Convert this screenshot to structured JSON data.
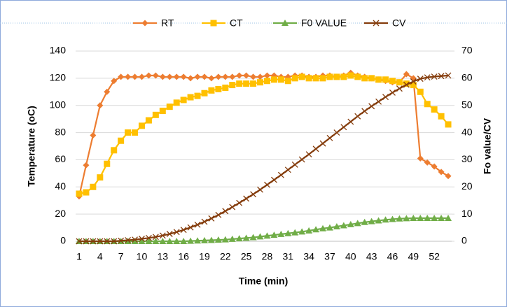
{
  "chart_data": {
    "type": "line",
    "xlabel": "Time (min)",
    "ylabel": "Temperature (oC)",
    "y2label": "Fo value/CV",
    "categories": [
      1,
      null,
      null,
      4,
      null,
      null,
      7,
      null,
      null,
      10,
      null,
      null,
      13,
      null,
      null,
      16,
      null,
      null,
      19,
      null,
      null,
      22,
      null,
      null,
      25,
      null,
      null,
      28,
      null,
      null,
      31,
      null,
      null,
      34,
      null,
      null,
      37,
      null,
      null,
      40,
      null,
      null,
      43,
      null,
      null,
      46,
      null,
      null,
      49,
      null,
      null,
      52,
      null,
      null
    ],
    "ylim": [
      0,
      140
    ],
    "yticks": [
      0,
      20,
      40,
      60,
      80,
      100,
      120,
      140
    ],
    "y2lim": [
      0,
      70
    ],
    "y2ticks": [
      0,
      10,
      20,
      30,
      40,
      50,
      60,
      70
    ],
    "grid": true,
    "legend": "top",
    "series": [
      {
        "name": "RT",
        "color": "#ed7d31",
        "marker": "diamond",
        "values": [
          33,
          56,
          78,
          100,
          110,
          118,
          121,
          121,
          121,
          121,
          122,
          122,
          121,
          121,
          121,
          121,
          120,
          121,
          121,
          120,
          121,
          121,
          121,
          122,
          122,
          121,
          121,
          122,
          122,
          121,
          121,
          122,
          122,
          121,
          121,
          122,
          122,
          121,
          122,
          124,
          122,
          121,
          120,
          119,
          118,
          117,
          117,
          123,
          120,
          61,
          58,
          55,
          51,
          48
        ]
      },
      {
        "name": "CT",
        "color": "#ffc000",
        "marker": "square",
        "values": [
          35,
          36,
          40,
          47,
          57,
          67,
          74,
          80,
          80,
          85,
          89,
          93,
          96,
          99,
          102,
          104,
          106,
          107,
          109,
          111,
          112,
          113,
          115,
          116,
          116,
          116,
          117,
          118,
          119,
          119,
          118,
          120,
          121,
          120,
          120,
          120,
          121,
          121,
          121,
          122,
          121,
          120,
          120,
          119,
          119,
          118,
          117,
          116,
          115,
          110,
          101,
          97,
          92,
          86
        ]
      },
      {
        "name": "F0 VALUE",
        "color": "#70ad47",
        "marker": "triangle",
        "axis": "y2",
        "values": [
          0,
          0,
          0,
          0,
          0,
          0,
          0,
          0,
          0,
          0,
          0,
          0,
          0,
          0,
          0,
          0,
          0.1,
          0.2,
          0.3,
          0.4,
          0.5,
          0.6,
          0.8,
          1.0,
          1.2,
          1.4,
          1.7,
          2.0,
          2.3,
          2.6,
          2.9,
          3.2,
          3.5,
          3.9,
          4.3,
          4.7,
          5.0,
          5.4,
          5.8,
          6.2,
          6.6,
          7.0,
          7.3,
          7.6,
          7.9,
          8.1,
          8.3,
          8.4,
          8.5,
          8.5,
          8.5,
          8.5,
          8.5,
          8.5
        ]
      },
      {
        "name": "CV",
        "color": "#843c0c",
        "marker": "x",
        "axis": "y2",
        "values": [
          0,
          0,
          0,
          0,
          0,
          0,
          0.2,
          0.4,
          0.6,
          0.9,
          1.2,
          1.6,
          2.1,
          2.7,
          3.4,
          4.2,
          5.1,
          6.1,
          7.2,
          8.4,
          9.7,
          11.1,
          12.6,
          14.1,
          15.7,
          17.3,
          19.0,
          20.8,
          22.6,
          24.4,
          26.3,
          28.2,
          30.1,
          32.0,
          34.0,
          36.0,
          38.0,
          40.0,
          42.0,
          44.0,
          46.0,
          47.9,
          49.7,
          51.4,
          53.1,
          54.7,
          56.2,
          57.6,
          58.8,
          59.8,
          60.3,
          60.6,
          60.8,
          61.0
        ]
      }
    ]
  }
}
